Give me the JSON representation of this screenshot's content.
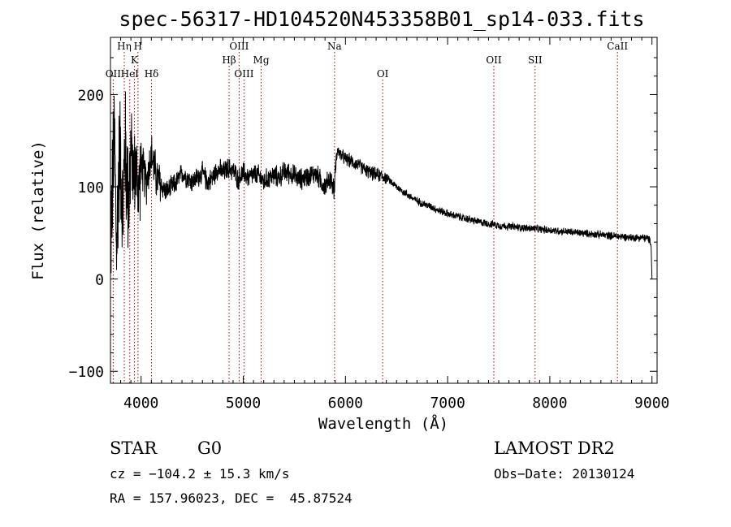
{
  "chart_data": {
    "type": "line",
    "title": "spec-56317-HD104520N453358B01_sp14-033.fits",
    "xlabel": "Wavelength (Å)",
    "ylabel": "Flux (relative)",
    "xlim": [
      3700,
      9050
    ],
    "ylim": [
      -113,
      262
    ],
    "x_ticks": [
      4000,
      5000,
      6000,
      7000,
      8000,
      9000
    ],
    "y_ticks": [
      -100,
      0,
      100,
      200
    ],
    "x_tick_labels": [
      "4000",
      "5000",
      "6000",
      "7000",
      "8000",
      "9000"
    ],
    "y_tick_labels": [
      "−100",
      "0",
      "100",
      "200"
    ],
    "grid": false,
    "series": [
      {
        "color": "#000000",
        "x": [
          3700,
          3720,
          3740,
          3760,
          3780,
          3800,
          3820,
          3840,
          3860,
          3880,
          3900,
          3925,
          3950,
          3975,
          4000,
          4050,
          4100,
          4150,
          4200,
          4250,
          4300,
          4350,
          4400,
          4450,
          4500,
          4550,
          4600,
          4650,
          4700,
          4750,
          4800,
          4850,
          4900,
          4950,
          5000,
          5050,
          5100,
          5150,
          5200,
          5250,
          5300,
          5350,
          5400,
          5450,
          5500,
          5550,
          5600,
          5650,
          5700,
          5750,
          5800,
          5850,
          5890,
          5900,
          5920,
          5950,
          6000,
          6050,
          6100,
          6150,
          6200,
          6250,
          6300,
          6350,
          6400,
          6450,
          6500,
          6550,
          6600,
          6650,
          6700,
          6750,
          6800,
          6850,
          6900,
          6950,
          7000,
          7050,
          7100,
          7150,
          7200,
          7300,
          7400,
          7500,
          7600,
          7700,
          7800,
          7900,
          8000,
          8100,
          8200,
          8300,
          8400,
          8500,
          8600,
          8700,
          8800,
          8900,
          8960,
          8990,
          9000
        ],
        "y": [
          40,
          100,
          155,
          30,
          120,
          140,
          60,
          150,
          110,
          90,
          140,
          115,
          120,
          95,
          125,
          105,
          135,
          110,
          100,
          95,
          100,
          105,
          115,
          110,
          105,
          110,
          115,
          105,
          110,
          120,
          115,
          120,
          118,
          108,
          115,
          110,
          113,
          112,
          105,
          110,
          112,
          110,
          116,
          115,
          112,
          108,
          110,
          112,
          115,
          108,
          100,
          110,
          95,
          120,
          140,
          135,
          130,
          128,
          125,
          122,
          118,
          115,
          113,
          112,
          110,
          105,
          100,
          96,
          92,
          88,
          85,
          82,
          80,
          78,
          75,
          73,
          71,
          69,
          68,
          66,
          65,
          62,
          60,
          58,
          57,
          56,
          55,
          54,
          53,
          52,
          51,
          50,
          49,
          48,
          47,
          46,
          45,
          45,
          44,
          40,
          0
        ]
      }
    ],
    "lines": [
      {
        "label": "OII",
        "wave": 3727,
        "row": 3
      },
      {
        "label": "Hη",
        "wave": 3835,
        "row": 1
      },
      {
        "label": "HeI",
        "wave": 3889,
        "row": 3
      },
      {
        "label": "K",
        "wave": 3934,
        "row": 2
      },
      {
        "label": "H",
        "wave": 3969,
        "row": 1
      },
      {
        "label": "Hδ",
        "wave": 4102,
        "row": 3
      },
      {
        "label": "Hβ",
        "wave": 4861,
        "row": 2
      },
      {
        "label": "OIII",
        "wave": 4959,
        "row": 1
      },
      {
        "label": "OIII",
        "wave": 5007,
        "row": 3
      },
      {
        "label": "Mg",
        "wave": 5175,
        "row": 2
      },
      {
        "label": "Na",
        "wave": 5893,
        "row": 1
      },
      {
        "label": "OI",
        "wave": 6364,
        "row": 3
      },
      {
        "label": "OII",
        "wave": 7452,
        "row": 2
      },
      {
        "label": "SII",
        "wave": 7856,
        "row": 2
      },
      {
        "label": "CaII",
        "wave": 8662,
        "row": 1
      }
    ]
  },
  "footer": {
    "class": "STAR",
    "subclass": "G0",
    "survey": "LAMOST DR2",
    "cz": "cz = −104.2 ± 15.3 km/s",
    "obs_date": "Obs−Date: 20130124",
    "radec": "RA = 157.96023, DEC =  45.87524"
  }
}
